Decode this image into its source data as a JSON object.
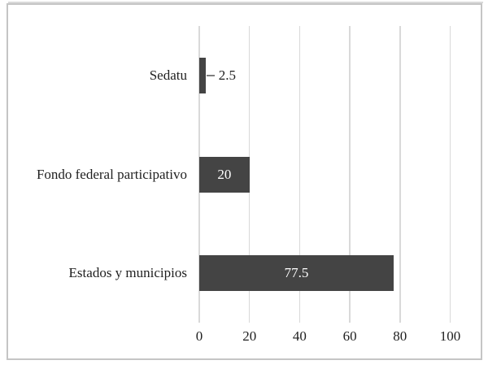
{
  "chart_data": {
    "type": "bar",
    "orientation": "horizontal",
    "title": "",
    "xlabel": "",
    "ylabel": "",
    "categories": [
      "Sedatu",
      "Fondo federal participativo",
      "Estados y municipios"
    ],
    "values": [
      2.5,
      20,
      77.5
    ],
    "data_labels": [
      "2.5",
      "20",
      "77.5"
    ],
    "xlim": [
      0,
      100
    ],
    "x_ticks": [
      0,
      20,
      40,
      60,
      80,
      100
    ],
    "grid": "vertical-major-gridlines",
    "legend_position": "none"
  },
  "colors": {
    "bar_fill": "#444444",
    "gridline": "#d9d9d9",
    "frame_border": "#c5c5c5",
    "top_rule": "#d9d9d9",
    "axis_text": "#1f1f1f",
    "category_text": "#1f1f1f",
    "value_label_inside": "#ffffff",
    "value_label_outside": "#1f1f1f",
    "leader_line": "#808080",
    "background": "#ffffff"
  }
}
